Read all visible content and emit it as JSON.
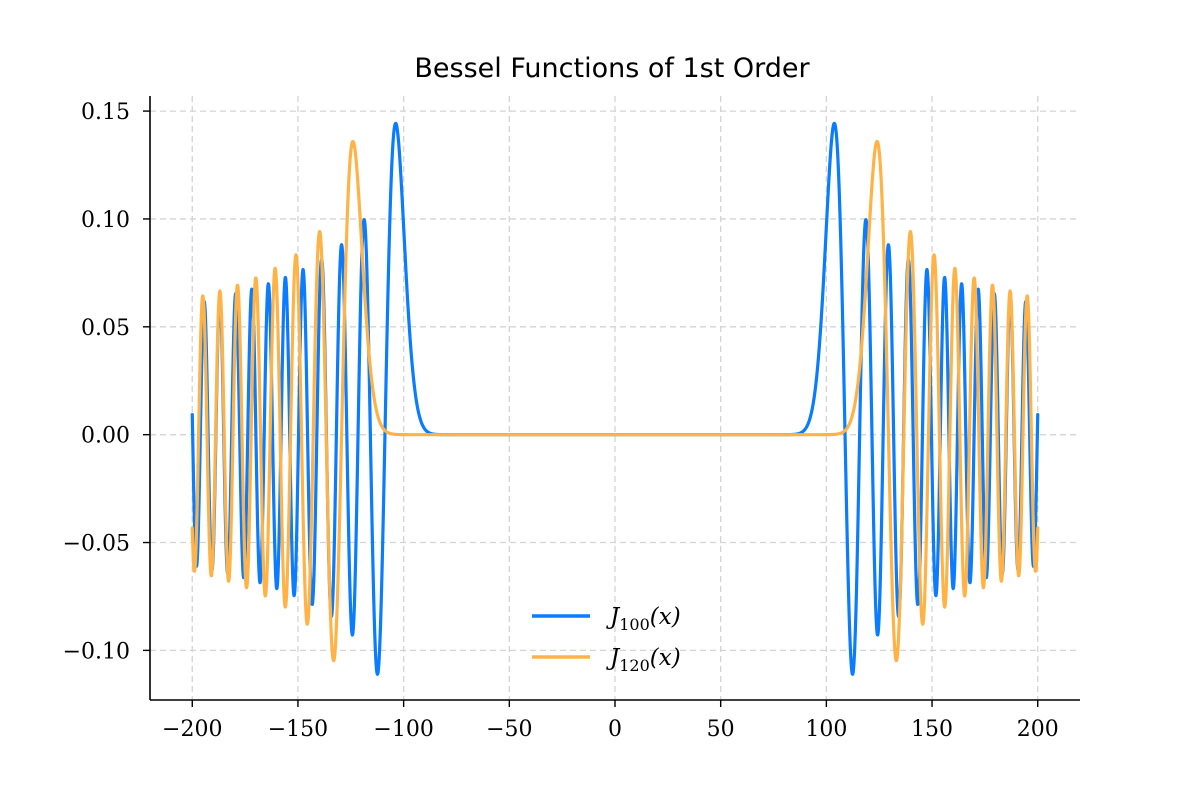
{
  "chart_data": {
    "type": "line",
    "title": "Bessel Functions of 1st Order",
    "xlabel": "",
    "ylabel": "",
    "xlim": [
      -220,
      220
    ],
    "ylim": [
      -0.123,
      0.157
    ],
    "xticks": [
      -200,
      -150,
      -100,
      -50,
      0,
      50,
      100,
      150,
      200
    ],
    "xtick_labels": [
      "−200",
      "−150",
      "−100",
      "−50",
      "0",
      "50",
      "100",
      "150",
      "200"
    ],
    "yticks": [
      -0.1,
      -0.05,
      0.0,
      0.05,
      0.1,
      0.15
    ],
    "ytick_labels": [
      "−0.10",
      "−0.05",
      "0.00",
      "0.05",
      "0.10",
      "0.15"
    ],
    "grid": true,
    "legend_position": "lower center",
    "x_sample_range": [
      -200,
      200
    ],
    "series": [
      {
        "name": "J100(x)",
        "label_main": "J",
        "label_sub": "100",
        "label_arg": "(x)",
        "order": 100,
        "color": "#0a7cff",
        "peak_points": [
          [
            104.5,
            0.145
          ],
          [
            -104.5,
            0.145
          ],
          [
            111,
            -0.108
          ],
          [
            -111,
            -0.108
          ],
          [
            120,
            -0.09
          ],
          [
            -120,
            -0.09
          ],
          [
            131,
            0.088
          ],
          [
            -131,
            0.088
          ],
          [
            200,
            0.01
          ]
        ]
      },
      {
        "name": "J120(x)",
        "label_main": "J",
        "label_sub": "120",
        "label_arg": "(x)",
        "order": 120,
        "color": "#ffb347",
        "peak_points": [
          [
            125,
            0.135
          ],
          [
            -125,
            0.135
          ],
          [
            134,
            -0.103
          ],
          [
            -134,
            -0.103
          ],
          [
            200,
            -0.043
          ]
        ]
      }
    ]
  }
}
